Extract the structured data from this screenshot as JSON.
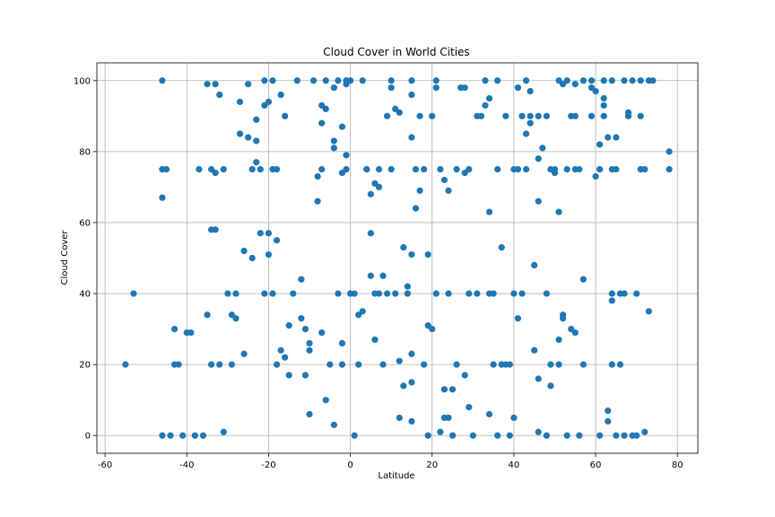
{
  "chart_data": {
    "type": "scatter",
    "title": "Cloud Cover in World Cities",
    "xlabel": "Latitude",
    "ylabel": "Cloud Cover",
    "xlim": [
      -62,
      85
    ],
    "ylim": [
      -5,
      105
    ],
    "xticks": [
      -60,
      -40,
      -20,
      0,
      20,
      40,
      60,
      80
    ],
    "yticks": [
      0,
      20,
      40,
      60,
      80,
      100
    ],
    "grid": true,
    "color": "#1f77b4",
    "points": [
      [
        -55,
        20
      ],
      [
        -53,
        40
      ],
      [
        -46,
        100
      ],
      [
        -46,
        67
      ],
      [
        -46,
        75
      ],
      [
        -45,
        75
      ],
      [
        -46,
        0
      ],
      [
        -44,
        0
      ],
      [
        -43,
        30
      ],
      [
        -43,
        20
      ],
      [
        -42,
        20
      ],
      [
        -41,
        0
      ],
      [
        -40,
        29
      ],
      [
        -39,
        29
      ],
      [
        -38,
        0
      ],
      [
        -37,
        75
      ],
      [
        -36,
        0
      ],
      [
        -35,
        99
      ],
      [
        -35,
        34
      ],
      [
        -34,
        75
      ],
      [
        -34,
        58
      ],
      [
        -34,
        20
      ],
      [
        -33,
        99
      ],
      [
        -33,
        74
      ],
      [
        -33,
        58
      ],
      [
        -32,
        96
      ],
      [
        -32,
        20
      ],
      [
        -31,
        75
      ],
      [
        -31,
        1
      ],
      [
        -30,
        40
      ],
      [
        -29,
        20
      ],
      [
        -29,
        34
      ],
      [
        -28,
        40
      ],
      [
        -28,
        33
      ],
      [
        -27,
        94
      ],
      [
        -27,
        85
      ],
      [
        -26,
        52
      ],
      [
        -26,
        23
      ],
      [
        -25,
        99
      ],
      [
        -25,
        84
      ],
      [
        -24,
        75
      ],
      [
        -24,
        50
      ],
      [
        -23,
        89
      ],
      [
        -23,
        83
      ],
      [
        -23,
        77
      ],
      [
        -22,
        75
      ],
      [
        -22,
        57
      ],
      [
        -21,
        100
      ],
      [
        -21,
        93
      ],
      [
        -21,
        40
      ],
      [
        -20,
        94
      ],
      [
        -20,
        57
      ],
      [
        -20,
        51
      ],
      [
        -19,
        100
      ],
      [
        -19,
        75
      ],
      [
        -19,
        40
      ],
      [
        -18,
        75
      ],
      [
        -18,
        55
      ],
      [
        -18,
        20
      ],
      [
        -17,
        96
      ],
      [
        -17,
        24
      ],
      [
        -16,
        22
      ],
      [
        -16,
        90
      ],
      [
        -15,
        31
      ],
      [
        -15,
        17
      ],
      [
        -14,
        40
      ],
      [
        -13,
        100
      ],
      [
        -12,
        44
      ],
      [
        -12,
        33
      ],
      [
        -11,
        30
      ],
      [
        -11,
        17
      ],
      [
        -10,
        26
      ],
      [
        -10,
        24
      ],
      [
        -10,
        6
      ],
      [
        -9,
        100
      ],
      [
        -8,
        73
      ],
      [
        -8,
        66
      ],
      [
        -7,
        93
      ],
      [
        -7,
        88
      ],
      [
        -7,
        75
      ],
      [
        -7,
        29
      ],
      [
        -6,
        100
      ],
      [
        -6,
        92
      ],
      [
        -6,
        10
      ],
      [
        -5,
        20
      ],
      [
        -4,
        98
      ],
      [
        -4,
        83
      ],
      [
        -4,
        81
      ],
      [
        -4,
        3
      ],
      [
        -3,
        100
      ],
      [
        -3,
        40
      ],
      [
        -2,
        87
      ],
      [
        -2,
        74
      ],
      [
        -2,
        26
      ],
      [
        -2,
        20
      ],
      [
        -1,
        100
      ],
      [
        -1,
        99
      ],
      [
        -1,
        75
      ],
      [
        -1,
        79
      ],
      [
        0,
        100
      ],
      [
        0,
        40
      ],
      [
        1,
        40
      ],
      [
        1,
        0
      ],
      [
        2,
        34
      ],
      [
        2,
        20
      ],
      [
        3,
        100
      ],
      [
        3,
        35
      ],
      [
        4,
        75
      ],
      [
        4,
        75
      ],
      [
        5,
        57
      ],
      [
        5,
        68
      ],
      [
        5,
        45
      ],
      [
        6,
        71
      ],
      [
        6,
        27
      ],
      [
        6,
        40
      ],
      [
        7,
        75
      ],
      [
        7,
        70
      ],
      [
        7,
        40
      ],
      [
        8,
        45
      ],
      [
        8,
        20
      ],
      [
        9,
        40
      ],
      [
        9,
        90
      ],
      [
        10,
        100
      ],
      [
        10,
        98
      ],
      [
        10,
        75
      ],
      [
        11,
        92
      ],
      [
        11,
        40
      ],
      [
        12,
        91
      ],
      [
        12,
        21
      ],
      [
        12,
        5
      ],
      [
        13,
        14
      ],
      [
        13,
        53
      ],
      [
        14,
        40
      ],
      [
        14,
        42
      ],
      [
        15,
        100
      ],
      [
        15,
        96
      ],
      [
        15,
        84
      ],
      [
        15,
        51
      ],
      [
        15,
        23
      ],
      [
        15,
        15
      ],
      [
        15,
        4
      ],
      [
        16,
        64
      ],
      [
        16,
        75
      ],
      [
        17,
        69
      ],
      [
        17,
        90
      ],
      [
        18,
        75
      ],
      [
        18,
        20
      ],
      [
        19,
        51
      ],
      [
        19,
        31
      ],
      [
        19,
        0
      ],
      [
        20,
        30
      ],
      [
        20,
        90
      ],
      [
        21,
        100
      ],
      [
        21,
        98
      ],
      [
        21,
        40
      ],
      [
        22,
        75
      ],
      [
        22,
        1
      ],
      [
        23,
        72
      ],
      [
        23,
        13
      ],
      [
        23,
        5
      ],
      [
        24,
        40
      ],
      [
        24,
        69
      ],
      [
        24,
        5
      ],
      [
        25,
        13
      ],
      [
        25,
        0
      ],
      [
        26,
        75
      ],
      [
        26,
        20
      ],
      [
        27,
        98
      ],
      [
        28,
        74
      ],
      [
        28,
        17
      ],
      [
        28,
        98
      ],
      [
        29,
        75
      ],
      [
        29,
        40
      ],
      [
        29,
        8
      ],
      [
        30,
        0
      ],
      [
        31,
        40
      ],
      [
        31,
        90
      ],
      [
        32,
        90
      ],
      [
        33,
        100
      ],
      [
        33,
        93
      ],
      [
        34,
        95
      ],
      [
        34,
        63
      ],
      [
        34,
        40
      ],
      [
        34,
        6
      ],
      [
        35,
        40
      ],
      [
        35,
        20
      ],
      [
        36,
        100
      ],
      [
        36,
        75
      ],
      [
        36,
        0
      ],
      [
        37,
        53
      ],
      [
        37,
        20
      ],
      [
        38,
        90
      ],
      [
        38,
        20
      ],
      [
        39,
        20
      ],
      [
        39,
        0
      ],
      [
        40,
        75
      ],
      [
        40,
        40
      ],
      [
        40,
        5
      ],
      [
        41,
        98
      ],
      [
        41,
        75
      ],
      [
        41,
        33
      ],
      [
        42,
        90
      ],
      [
        42,
        40
      ],
      [
        43,
        85
      ],
      [
        43,
        100
      ],
      [
        43,
        75
      ],
      [
        44,
        90
      ],
      [
        44,
        97
      ],
      [
        44,
        88
      ],
      [
        45,
        48
      ],
      [
        45,
        24
      ],
      [
        46,
        90
      ],
      [
        46,
        78
      ],
      [
        46,
        66
      ],
      [
        46,
        16
      ],
      [
        46,
        1
      ],
      [
        47,
        81
      ],
      [
        48,
        90
      ],
      [
        48,
        40
      ],
      [
        48,
        0
      ],
      [
        49,
        75
      ],
      [
        49,
        20
      ],
      [
        49,
        14
      ],
      [
        50,
        74
      ],
      [
        50,
        75
      ],
      [
        51,
        100
      ],
      [
        51,
        63
      ],
      [
        51,
        27
      ],
      [
        51,
        20
      ],
      [
        52,
        99
      ],
      [
        52,
        34
      ],
      [
        52,
        33
      ],
      [
        53,
        100
      ],
      [
        53,
        75
      ],
      [
        53,
        0
      ],
      [
        54,
        90
      ],
      [
        54,
        30
      ],
      [
        55,
        99
      ],
      [
        55,
        29
      ],
      [
        55,
        75
      ],
      [
        55,
        90
      ],
      [
        56,
        75
      ],
      [
        56,
        0
      ],
      [
        57,
        100
      ],
      [
        57,
        44
      ],
      [
        57,
        20
      ],
      [
        59,
        100
      ],
      [
        59,
        98
      ],
      [
        59,
        90
      ],
      [
        60,
        97
      ],
      [
        60,
        73
      ],
      [
        61,
        82
      ],
      [
        61,
        75
      ],
      [
        61,
        0
      ],
      [
        62,
        100
      ],
      [
        62,
        93
      ],
      [
        62,
        90
      ],
      [
        62,
        95
      ],
      [
        63,
        7
      ],
      [
        63,
        4
      ],
      [
        63,
        84
      ],
      [
        64,
        100
      ],
      [
        64,
        75
      ],
      [
        64,
        40
      ],
      [
        64,
        38
      ],
      [
        64,
        20
      ],
      [
        65,
        84
      ],
      [
        65,
        75
      ],
      [
        65,
        0
      ],
      [
        66,
        40
      ],
      [
        66,
        20
      ],
      [
        67,
        100
      ],
      [
        67,
        40
      ],
      [
        67,
        0
      ],
      [
        68,
        90
      ],
      [
        68,
        91
      ],
      [
        69,
        100
      ],
      [
        69,
        0
      ],
      [
        70,
        40
      ],
      [
        70,
        0
      ],
      [
        71,
        100
      ],
      [
        71,
        90
      ],
      [
        71,
        75
      ],
      [
        72,
        75
      ],
      [
        72,
        1
      ],
      [
        73,
        100
      ],
      [
        73,
        35
      ],
      [
        74,
        100
      ],
      [
        78,
        80
      ],
      [
        78,
        75
      ]
    ]
  }
}
